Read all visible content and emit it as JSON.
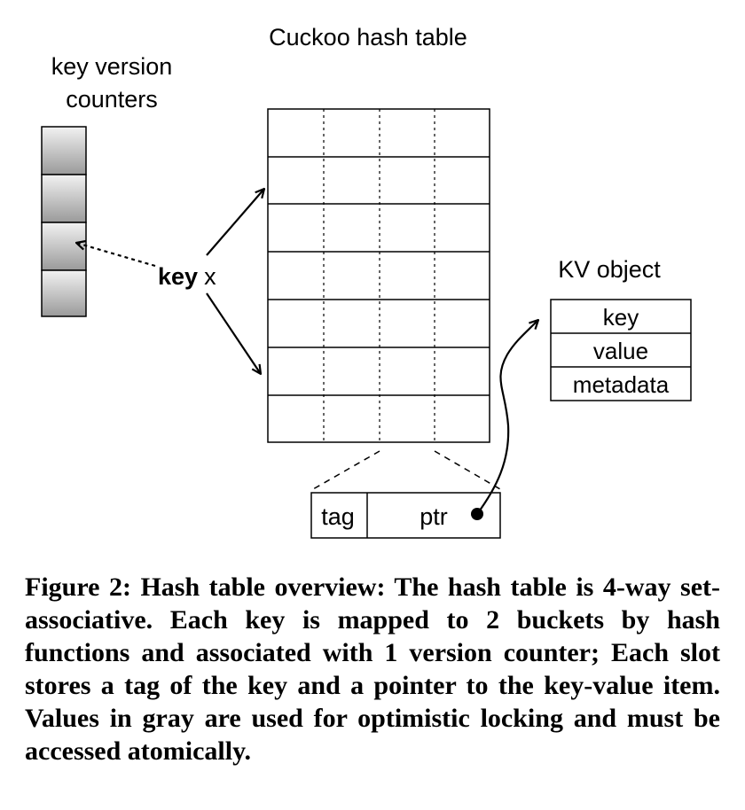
{
  "diagram": {
    "counters_label": [
      "key version",
      "counters"
    ],
    "table_title": "Cuckoo hash table",
    "key_bold": "key",
    "key_var": "x",
    "kv_object": {
      "title": "KV object",
      "fields": [
        "key",
        "value",
        "metadata"
      ]
    },
    "slot": {
      "tag": "tag",
      "ptr": "ptr"
    },
    "colors": {
      "counter_gray_light": "#f2f2f2",
      "counter_gray_dark": "#9a9a9a"
    }
  },
  "caption": "Figure 2: Hash table overview: The hash table is 4-way set-associative. Each key is mapped to 2 buckets by hash functions and associated with 1 version counter; Each slot stores a tag of the key and a pointer to the key-value item. Values in gray are used for optimistic locking and must be accessed atomically."
}
